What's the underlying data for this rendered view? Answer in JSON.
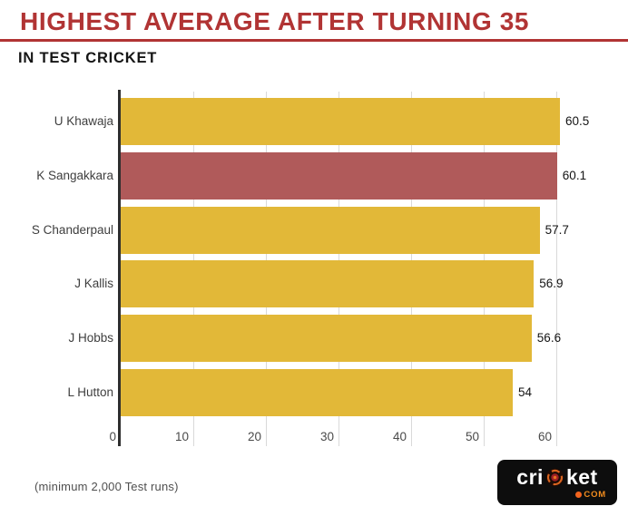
{
  "header": {
    "title": "HIGHEST AVERAGE AFTER TURNING 35",
    "subtitle": "IN TEST CRICKET"
  },
  "chart_data": {
    "type": "bar",
    "orientation": "horizontal",
    "title": "HIGHEST AVERAGE AFTER TURNING 35",
    "subtitle": "IN TEST CRICKET",
    "categories": [
      "U Khawaja",
      "K Sangakkara",
      "S Chanderpaul",
      "J Kallis",
      "J Hobbs",
      "L Hutton"
    ],
    "values": [
      60.5,
      60.1,
      57.7,
      56.9,
      56.6,
      54
    ],
    "value_labels": [
      "60.5",
      "60.1",
      "57.7",
      "56.9",
      "56.6",
      "54"
    ],
    "x_ticks": [
      0,
      10,
      20,
      30,
      40,
      50,
      60
    ],
    "xlim": [
      0,
      63
    ],
    "grid": true,
    "legend_position": "none",
    "highlight_index": 1,
    "bar_color": "#E2B838",
    "highlight_color": "#B05A5A"
  },
  "footer": {
    "note": "(minimum 2,000 Test runs)"
  },
  "logo": {
    "text_pre": "cri",
    "text_post": "ket",
    "tld": "COM"
  },
  "colors": {
    "title_red": "#B13434",
    "axis": "#2E2E2E",
    "gridline": "#D9D9D9",
    "logo_bg": "#0D0D0D",
    "logo_accent": "#F28C1E"
  }
}
